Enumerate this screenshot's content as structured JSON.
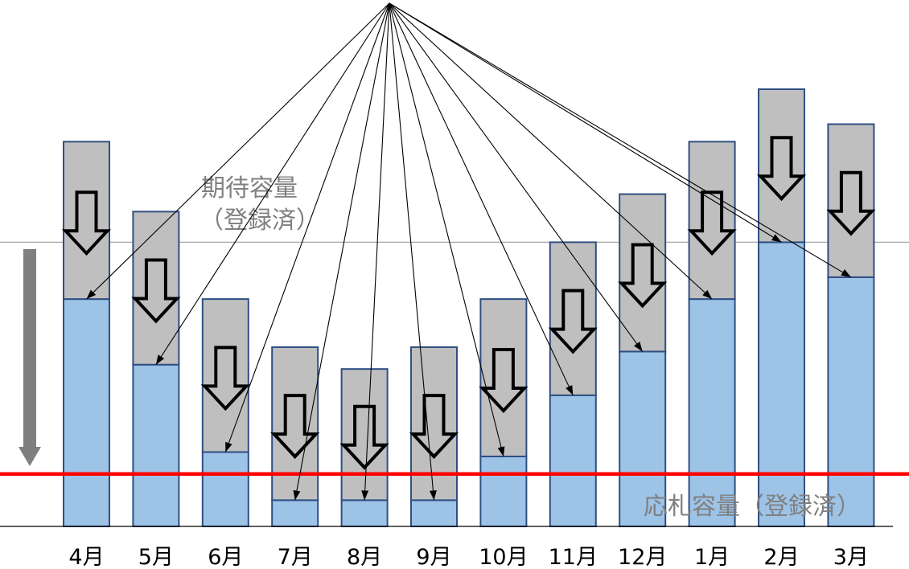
{
  "chart_data": {
    "type": "bar",
    "stacked": true,
    "categories": [
      "4月",
      "5月",
      "6月",
      "7月",
      "8月",
      "9月",
      "10月",
      "11月",
      "12月",
      "1月",
      "2月",
      "3月"
    ],
    "series": [
      {
        "values": [
          52,
          37,
          17,
          6,
          6,
          6,
          16,
          30,
          40,
          52,
          65,
          57
        ],
        "color": "#9DC3E6"
      },
      {
        "values": [
          36,
          35,
          35,
          35,
          30,
          35,
          36,
          35,
          36,
          36,
          35,
          35
        ],
        "color": "#BFBFBF"
      }
    ],
    "bar_border_color": "#2F4F82",
    "reference_lines": [
      {
        "value": 65,
        "color": "#A6A6A6"
      },
      {
        "value": 12,
        "color": "#FF0000"
      }
    ],
    "annotations": [
      {
        "lines": [
          "期待容量",
          "（登録済）"
        ],
        "color": "#808080"
      },
      {
        "lines": [
          "応札容量（登録済）"
        ],
        "color": "#808080"
      }
    ],
    "overall_arrow_color": "#7F7F7F",
    "y_axis_visible": false,
    "grid": false,
    "legend": "none"
  }
}
